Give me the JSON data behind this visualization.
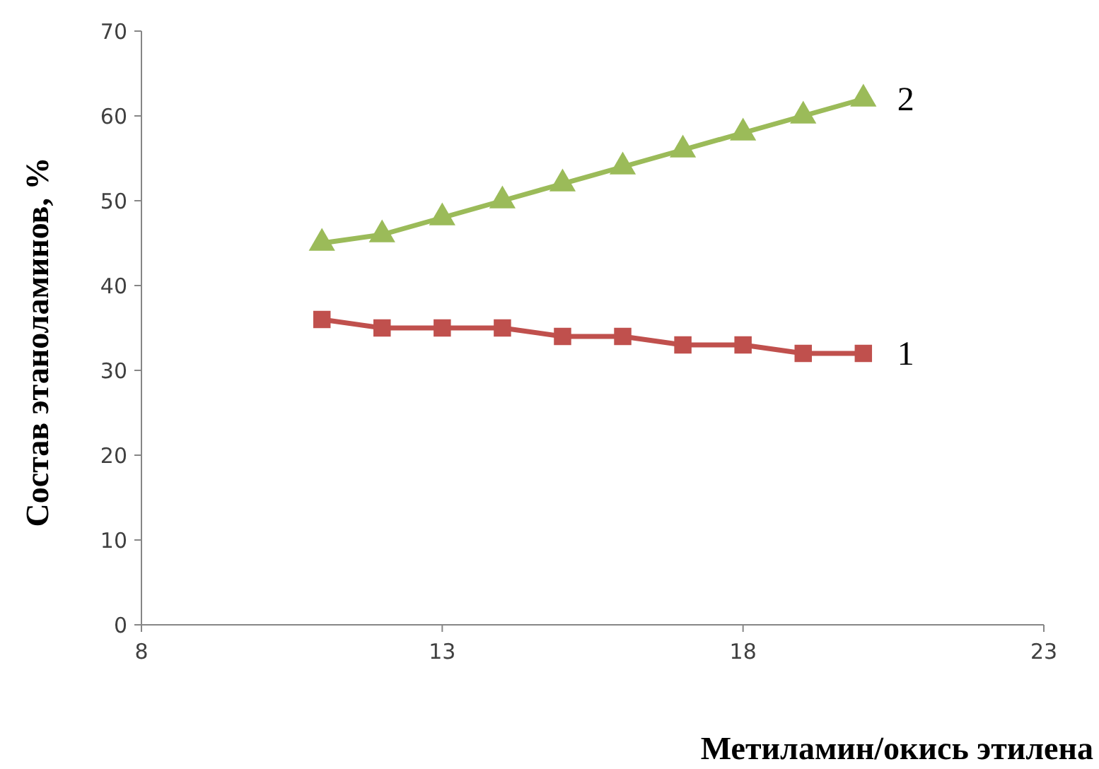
{
  "chart_data": {
    "type": "line",
    "xlabel": "Метиламин/окись этилена",
    "ylabel": "Состав этаноламинов, %",
    "x": [
      11,
      12,
      13,
      14,
      15,
      16,
      17,
      18,
      19,
      20
    ],
    "xlim": [
      8,
      23
    ],
    "xticks": [
      8,
      13,
      18,
      23
    ],
    "ylim": [
      0,
      70
    ],
    "yticks": [
      0,
      10,
      20,
      30,
      40,
      50,
      60,
      70
    ],
    "grid": false,
    "legend": false,
    "line_style": "solid",
    "series": [
      {
        "name": "1",
        "color": "#c0504d",
        "marker": "square",
        "values": [
          36,
          35,
          35,
          35,
          34,
          34,
          33,
          33,
          32,
          32
        ]
      },
      {
        "name": "2",
        "color": "#9bbb59",
        "marker": "triangle",
        "values": [
          45,
          46,
          48,
          50,
          52,
          54,
          56,
          58,
          60,
          62
        ]
      }
    ]
  }
}
